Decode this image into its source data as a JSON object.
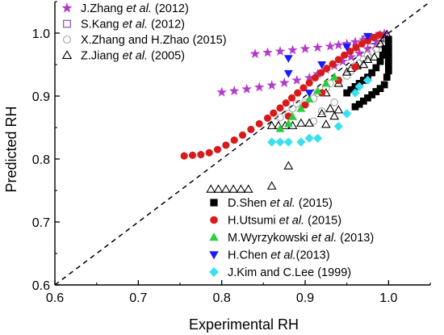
{
  "chart_data": {
    "type": "scatter",
    "xlabel": "Experimental RH",
    "ylabel": "Predicted RH",
    "xlim": [
      0.6,
      1.05
    ],
    "ylim": [
      0.6,
      1.05
    ],
    "x_ticks": [
      "0.6",
      "0.7",
      "0.8",
      "0.9",
      "1.0"
    ],
    "y_ticks": [
      "0.6",
      "0.7",
      "0.8",
      "0.9",
      "1.0"
    ],
    "reference_line": {
      "style": "dashed",
      "from": [
        0.6,
        0.6
      ],
      "to": [
        1.05,
        1.05
      ]
    },
    "grid": false,
    "legends": [
      {
        "placement": "top-left",
        "series": [
          0,
          1,
          2,
          3
        ]
      },
      {
        "placement": "bottom-right",
        "series": [
          4,
          5,
          6,
          7,
          8
        ]
      }
    ],
    "series": [
      {
        "name_parts": [
          "J.Zhang ",
          "et al.",
          " (2012)"
        ],
        "marker": "star",
        "color": "#b23cc9",
        "filled": true,
        "points": [
          [
            0.84,
            0.967
          ],
          [
            0.855,
            0.969
          ],
          [
            0.87,
            0.971
          ],
          [
            0.885,
            0.973
          ],
          [
            0.9,
            0.975
          ],
          [
            0.915,
            0.977
          ],
          [
            0.93,
            0.979
          ],
          [
            0.94,
            0.981
          ],
          [
            0.95,
            0.983
          ],
          [
            0.96,
            0.986
          ],
          [
            0.97,
            0.989
          ],
          [
            0.98,
            0.992
          ],
          [
            0.985,
            0.995
          ],
          [
            0.99,
            0.997
          ],
          [
            0.995,
            0.999
          ],
          [
            0.8,
            0.906
          ],
          [
            0.815,
            0.908
          ],
          [
            0.83,
            0.911
          ],
          [
            0.845,
            0.914
          ],
          [
            0.86,
            0.917
          ],
          [
            0.875,
            0.921
          ],
          [
            0.89,
            0.925
          ],
          [
            0.905,
            0.929
          ],
          [
            0.915,
            0.935
          ],
          [
            0.925,
            0.942
          ],
          [
            0.935,
            0.948
          ],
          [
            0.945,
            0.955
          ],
          [
            0.955,
            0.962
          ],
          [
            0.965,
            0.968
          ],
          [
            0.975,
            0.975
          ],
          [
            0.985,
            0.982
          ]
        ]
      },
      {
        "name_parts": [
          "S.Kang ",
          "et al.",
          " (2012)"
        ],
        "marker": "square",
        "color": "#7a3fb5",
        "filled": false,
        "points": [
          [
            0.972,
            0.99
          ],
          [
            0.98,
            0.988
          ],
          [
            0.99,
            0.993
          ],
          [
            0.995,
            0.996
          ]
        ]
      },
      {
        "name_parts": [
          "X.Zhang and H.Zhao (2015)",
          "",
          ""
        ],
        "marker": "circle",
        "color": "#a6a6a6",
        "filled": false,
        "points": [
          [
            0.87,
            0.866
          ],
          [
            0.88,
            0.872
          ],
          [
            0.885,
            0.88
          ],
          [
            0.89,
            0.888
          ],
          [
            0.9,
            0.89
          ],
          [
            0.91,
            0.896
          ],
          [
            0.915,
            0.905
          ],
          [
            0.925,
            0.912
          ],
          [
            0.93,
            0.92
          ],
          [
            0.94,
            0.925
          ],
          [
            0.95,
            0.932
          ],
          [
            0.955,
            0.94
          ],
          [
            0.96,
            0.948
          ],
          [
            0.965,
            0.952
          ],
          [
            0.97,
            0.958
          ],
          [
            0.975,
            0.965
          ],
          [
            0.98,
            0.97
          ],
          [
            0.985,
            0.975
          ],
          [
            0.99,
            0.982
          ],
          [
            0.995,
            0.99
          ],
          [
            0.91,
            0.86
          ],
          [
            0.92,
            0.876
          ],
          [
            0.935,
            0.89
          ]
        ]
      },
      {
        "name_parts": [
          "Z.Jiang ",
          "et al.",
          " (2005)"
        ],
        "marker": "triangle",
        "color": "#000000",
        "filled": false,
        "points": [
          [
            0.787,
            0.752
          ],
          [
            0.796,
            0.752
          ],
          [
            0.805,
            0.752
          ],
          [
            0.814,
            0.752
          ],
          [
            0.823,
            0.752
          ],
          [
            0.832,
            0.752
          ],
          [
            0.86,
            0.757
          ],
          [
            0.88,
            0.789
          ],
          [
            0.86,
            0.853
          ],
          [
            0.868,
            0.853
          ],
          [
            0.876,
            0.853
          ],
          [
            0.885,
            0.853
          ],
          [
            0.895,
            0.857
          ],
          [
            0.905,
            0.857
          ],
          [
            0.925,
            0.855
          ],
          [
            0.935,
            0.868
          ],
          [
            0.94,
            0.878
          ],
          [
            0.925,
            0.905
          ],
          [
            0.94,
            0.92
          ],
          [
            0.95,
            0.938
          ],
          [
            0.955,
            0.944
          ],
          [
            0.962,
            0.948
          ],
          [
            0.97,
            0.95
          ],
          [
            0.975,
            0.958
          ],
          [
            0.983,
            0.962
          ],
          [
            0.99,
            0.983
          ],
          [
            0.995,
            0.992
          ],
          [
            0.998,
            0.998
          ],
          [
            0.92,
            0.872
          ],
          [
            0.93,
            0.88
          ]
        ]
      },
      {
        "name_parts": [
          "D.Shen ",
          "et al.",
          " (2015)"
        ],
        "marker": "square",
        "color": "#000000",
        "filled": true,
        "points": [
          [
            0.96,
            0.883
          ],
          [
            0.965,
            0.887
          ],
          [
            0.97,
            0.892
          ],
          [
            0.975,
            0.897
          ],
          [
            0.98,
            0.902
          ],
          [
            0.985,
            0.907
          ],
          [
            0.99,
            0.912
          ],
          [
            0.995,
            0.918
          ],
          [
            0.998,
            0.93
          ],
          [
            1.0,
            0.94
          ],
          [
            1.0,
            0.95
          ],
          [
            1.0,
            0.96
          ],
          [
            1.0,
            0.97
          ],
          [
            1.0,
            0.98
          ],
          [
            1.0,
            0.99
          ],
          [
            0.996,
            0.975
          ],
          [
            0.993,
            0.965
          ],
          [
            0.99,
            0.955
          ],
          [
            0.985,
            0.945
          ],
          [
            0.98,
            0.937
          ],
          [
            0.975,
            0.93
          ],
          [
            0.97,
            0.925
          ],
          [
            0.965,
            0.92
          ],
          [
            0.96,
            0.915
          ],
          [
            0.955,
            0.91
          ],
          [
            0.95,
            0.905
          ]
        ]
      },
      {
        "name_parts": [
          "H.Utsumi ",
          "et al.",
          " (2015)"
        ],
        "marker": "circle",
        "color": "#d91a1a",
        "filled": true,
        "points": [
          [
            0.755,
            0.805
          ],
          [
            0.765,
            0.806
          ],
          [
            0.775,
            0.807
          ],
          [
            0.785,
            0.81
          ],
          [
            0.795,
            0.815
          ],
          [
            0.805,
            0.822
          ],
          [
            0.815,
            0.83
          ],
          [
            0.825,
            0.838
          ],
          [
            0.835,
            0.847
          ],
          [
            0.845,
            0.856
          ],
          [
            0.855,
            0.865
          ],
          [
            0.862,
            0.873
          ],
          [
            0.87,
            0.881
          ],
          [
            0.877,
            0.889
          ],
          [
            0.884,
            0.897
          ],
          [
            0.891,
            0.905
          ],
          [
            0.898,
            0.913
          ],
          [
            0.905,
            0.921
          ],
          [
            0.912,
            0.929
          ],
          [
            0.919,
            0.937
          ],
          [
            0.926,
            0.944
          ],
          [
            0.933,
            0.951
          ],
          [
            0.94,
            0.958
          ],
          [
            0.947,
            0.965
          ],
          [
            0.954,
            0.971
          ],
          [
            0.961,
            0.977
          ],
          [
            0.968,
            0.983
          ],
          [
            0.975,
            0.988
          ],
          [
            0.982,
            0.993
          ],
          [
            0.989,
            0.997
          ],
          [
            0.88,
            0.868
          ],
          [
            0.9,
            0.886
          ],
          [
            0.92,
            0.905
          ],
          [
            0.94,
            0.925
          ],
          [
            0.96,
            0.946
          ]
        ]
      },
      {
        "name_parts": [
          "M.Wyrzykowski ",
          "et al.",
          " (2013)"
        ],
        "marker": "triangle",
        "color": "#2ecc40",
        "filled": true,
        "points": [
          [
            0.87,
            0.848
          ],
          [
            0.88,
            0.856
          ],
          [
            0.885,
            0.867
          ],
          [
            0.895,
            0.88
          ],
          [
            0.905,
            0.895
          ],
          [
            0.915,
            0.908
          ],
          [
            0.925,
            0.92
          ],
          [
            0.935,
            0.93
          ]
        ]
      },
      {
        "name_parts": [
          "H.Chen ",
          "et al.",
          "(2013)"
        ],
        "marker": "triangle-down",
        "color": "#1a1aff",
        "filled": true,
        "points": [
          [
            0.88,
            0.96
          ],
          [
            0.88,
            0.936
          ],
          [
            0.905,
            0.905
          ],
          [
            0.92,
            0.95
          ],
          [
            0.95,
            0.978
          ],
          [
            0.975,
            0.995
          ]
        ]
      },
      {
        "name_parts": [
          "J.Kim and C.Lee (1999)",
          "",
          ""
        ],
        "marker": "diamond",
        "color": "#38e0f0",
        "filled": true,
        "points": [
          [
            0.86,
            0.827
          ],
          [
            0.87,
            0.827
          ],
          [
            0.88,
            0.827
          ],
          [
            0.895,
            0.827
          ],
          [
            0.905,
            0.833
          ],
          [
            0.915,
            0.833
          ],
          [
            0.94,
            0.852
          ],
          [
            0.95,
            0.872
          ],
          [
            0.96,
            0.905
          ],
          [
            0.965,
            0.915
          ],
          [
            0.975,
            0.925
          ]
        ]
      }
    ]
  }
}
